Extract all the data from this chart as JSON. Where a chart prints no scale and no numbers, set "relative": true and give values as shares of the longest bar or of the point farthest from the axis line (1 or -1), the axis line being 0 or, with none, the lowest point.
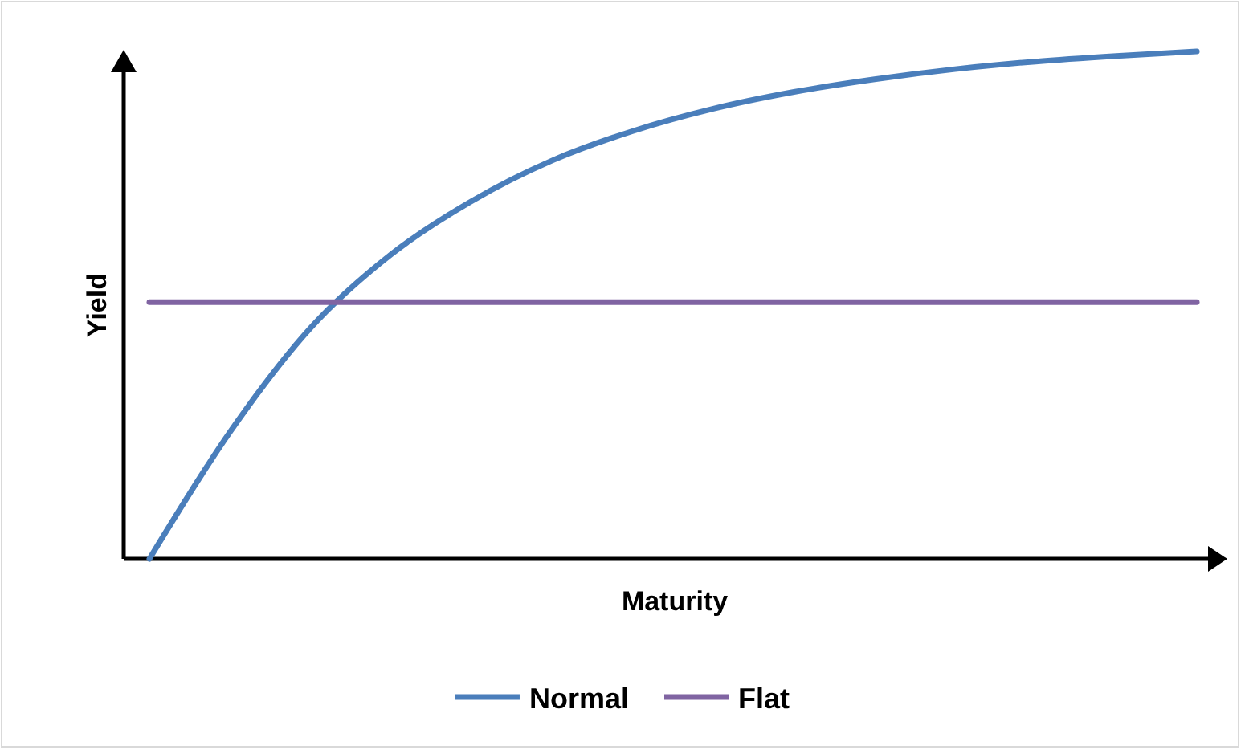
{
  "chart_data": {
    "type": "line",
    "relative": true,
    "xlabel": "Maturity",
    "ylabel": "Yield",
    "legend": "bottom",
    "categories": [
      null,
      null,
      null,
      null,
      null,
      null,
      null,
      null,
      null,
      null,
      null,
      null,
      null,
      null
    ],
    "series": [
      {
        "name": "Normal",
        "color": "#4a7ebb",
        "values": [
          0,
          0.25,
          0.455,
          0.6,
          0.705,
          0.785,
          0.843,
          0.887,
          0.92,
          0.945,
          0.965,
          0.98,
          0.991,
          1
        ]
      },
      {
        "name": "Flat",
        "color": "#8064a2",
        "values": [
          0.506,
          0.506,
          0.506,
          0.506,
          0.506,
          0.506,
          0.506,
          0.506,
          0.506,
          0.506,
          0.506,
          0.506,
          0.506,
          0.506
        ]
      }
    ]
  }
}
